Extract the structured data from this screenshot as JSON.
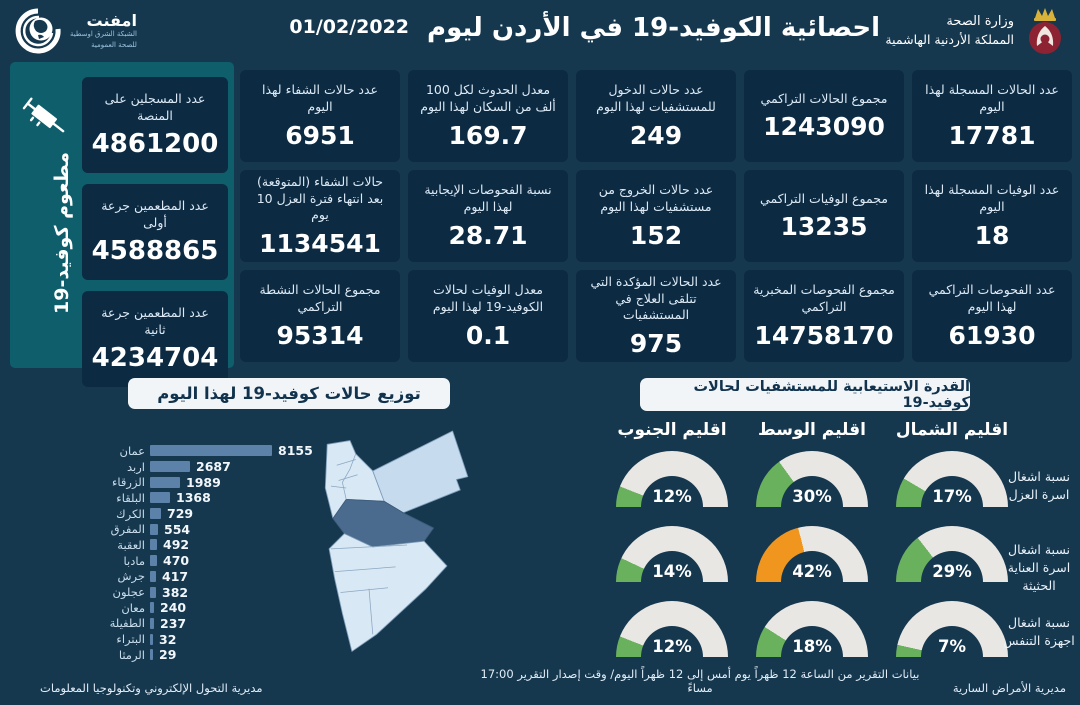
{
  "header": {
    "title": "احصائية الكوفيد-19 في الأردن ليوم",
    "date": "01/02/2022",
    "ministry": {
      "line1": "وزارة الصحة",
      "line2": "المملكة الأردنية الهاشمية"
    },
    "emphnet": {
      "name": "امفنت",
      "sub1": "الشبكة الشرق اوسطية",
      "sub2": "للصحة العمومية"
    }
  },
  "stats_cards": [
    {
      "label": "عدد الحالات المسجلة لهذا اليوم",
      "value": "17781"
    },
    {
      "label": "مجموع الحالات التراكمي",
      "value": "1243090"
    },
    {
      "label": "عدد حالات الدخول للمستشفيات لهذا اليوم",
      "value": "249"
    },
    {
      "label": "معدل الحدوث لكل 100 ألف من السكان لهذا اليوم",
      "value": "169.7"
    },
    {
      "label": "عدد حالات الشفاء لهذا اليوم",
      "value": "6951"
    },
    {
      "label": "عدد الوفيات المسجلة لهذا اليوم",
      "value": "18"
    },
    {
      "label": "مجموع الوفيات التراكمي",
      "value": "13235"
    },
    {
      "label": "عدد حالات الخروج من مستشفيات لهذا اليوم",
      "value": "152"
    },
    {
      "label": "نسبة الفحوصات الإيجابية لهذا اليوم",
      "value": "28.71"
    },
    {
      "label": "حالات الشفاء (المتوقعة) بعد انتهاء فترة العزل 10 يوم",
      "value": "1134541"
    },
    {
      "label": "عدد الفحوصات التراكمي لهذا اليوم",
      "value": "61930"
    },
    {
      "label": "مجموع الفحوصات المخبرية التراكمي",
      "value": "14758170"
    },
    {
      "label": "عدد الحالات المؤكدة التي تتلقى العلاج في المستشفيات",
      "value": "975"
    },
    {
      "label": "معدل الوفيات لحالات الكوفيد-19 لهذا اليوم",
      "value": "0.1"
    },
    {
      "label": "مجموع الحالات النشطة التراكمي",
      "value": "95314"
    }
  ],
  "vaccination": {
    "vertical_label": "مطعوم كوفيد-19",
    "cards": [
      {
        "label": "عدد المسجلين على المنصة",
        "value": "4861200"
      },
      {
        "label": "عدد المطعمين جرعة أولى",
        "value": "4588865"
      },
      {
        "label": "عدد المطعمين جرعة ثانية",
        "value": "4234704"
      }
    ]
  },
  "chart_data": [
    {
      "type": "bar",
      "orientation": "horizontal",
      "title": "توزيع حالات كوفيد-19 لهذا اليوم",
      "categories": [
        "عمان",
        "اربد",
        "الزرقاء",
        "البلقاء",
        "الكرك",
        "المفرق",
        "العقبة",
        "مادبا",
        "جرش",
        "عجلون",
        "معان",
        "الطفيلة",
        "البتراء",
        "الرمثا"
      ],
      "values": [
        8155,
        2687,
        1989,
        1368,
        729,
        554,
        492,
        470,
        417,
        382,
        240,
        237,
        32,
        29
      ],
      "xlim": [
        0,
        8155
      ],
      "grid": false,
      "legend": "none"
    },
    {
      "type": "gauge-grid",
      "title": "القدرة الاستيعابية للمستشفيات لحالات كوفيد-19",
      "columns": [
        "اقليم الشمال",
        "اقليم الوسط",
        "اقليم الجنوب"
      ],
      "rows": [
        "نسبة اشغال اسرة العزل",
        "نسبة اشغال اسرة العناية الحثيثة",
        "نسبة اشغال اجهزة التنفس"
      ],
      "values_pct": [
        [
          17,
          30,
          12
        ],
        [
          29,
          42,
          14
        ],
        [
          7,
          18,
          12
        ]
      ],
      "unit": "%",
      "range": [
        0,
        100
      ]
    }
  ],
  "footer": {
    "right": "مديرية الأمراض السارية",
    "center": "بيانات التقرير من الساعة 12 ظهراً يوم أمس إلى 12 ظهراً اليوم/ وقت إصدار التقرير 17:00 مساءً",
    "left": "مديرية التحول الإلكتروني وتكنولوجيا المعلومات"
  },
  "colors": {
    "background": "#16384f",
    "card": "#0c2a41",
    "sidebar": "#0e5e6c",
    "bar": "#5d82a9",
    "gauge_ok": "#6ab15e",
    "gauge_warn": "#f0961e",
    "gauge_track": "#e8e7e4",
    "title_box": "#f2f5f8",
    "map_light": "#d8e8f5",
    "map_mid": "#c6dcee",
    "map_dark": "#4a6b8d"
  }
}
